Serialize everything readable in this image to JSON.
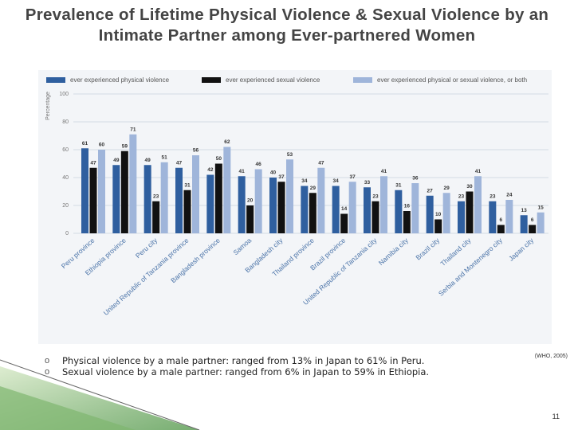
{
  "slide_title": "Prevalence of Lifetime Physical Violence & Sexual Violence by an Intimate Partner among Ever-partnered Women",
  "chart_data": {
    "type": "bar",
    "categories": [
      "Peru province",
      "Ethiopia province",
      "Peru city",
      "United Republic of Tanzania province",
      "Bangladesh province",
      "Samoa",
      "Bangladesh city",
      "Thailand province",
      "Brazil province",
      "United Republic of Tanzania city",
      "Namibia city",
      "Brazil city",
      "Thailand city",
      "Serbia and Montenegro city",
      "Japan city"
    ],
    "series": [
      {
        "name": "ever experienced physical violence",
        "color": "#2f5f9f",
        "values": [
          61,
          49,
          49,
          47,
          42,
          41,
          40,
          34,
          34,
          33,
          31,
          27,
          23,
          23,
          13
        ]
      },
      {
        "name": "ever experienced sexual violence",
        "color": "#111111",
        "values": [
          47,
          59,
          23,
          31,
          50,
          20,
          37,
          29,
          14,
          23,
          16,
          10,
          30,
          6,
          6
        ]
      },
      {
        "name": "ever experienced physical or sexual violence, or both",
        "color": "#9fb5da",
        "values": [
          60,
          71,
          51,
          56,
          62,
          46,
          53,
          47,
          37,
          41,
          36,
          29,
          41,
          24,
          15
        ]
      }
    ],
    "ylabel": "Percentage",
    "ylim": [
      0,
      100
    ],
    "yticks": [
      0,
      20,
      40,
      60,
      80,
      100
    ],
    "grid": true
  },
  "bullets": [
    "Physical violence by a male partner: ranged from 13% in Japan to 61% in Peru.",
    "Sexual violence by a male partner: ranged from 6% in Japan to 59% in Ethiopia."
  ],
  "source": "(WHO, 2005)",
  "page_number": 11
}
